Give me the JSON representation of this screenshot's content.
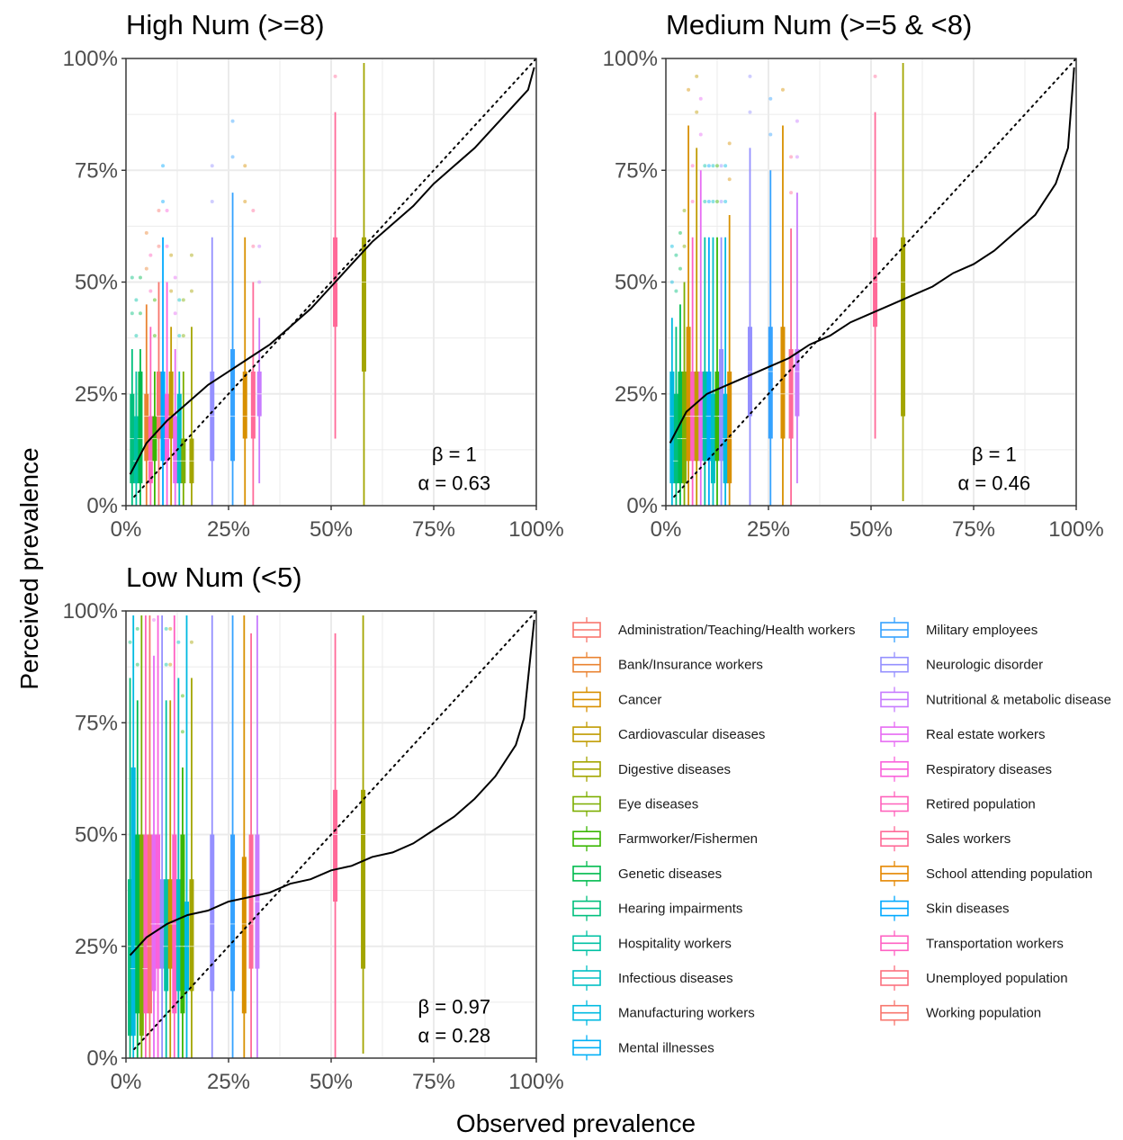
{
  "chart_data": {
    "type": "boxplot",
    "x_axis_title": "Observed prevalence",
    "y_axis_title": "Perceived prevalence",
    "tick_labels": [
      "0%",
      "25%",
      "50%",
      "75%",
      "100%"
    ],
    "xlim": [
      0,
      100
    ],
    "ylim": [
      0,
      100
    ],
    "grid": true,
    "legend_placement": "bottom-right",
    "reference_line": "identity (dotted)",
    "legend": [
      {
        "name": "Administration/Teaching/Health workers",
        "color": "#F8766D"
      },
      {
        "name": "Bank/Insurance workers",
        "color": "#EA8331"
      },
      {
        "name": "Cancer",
        "color": "#D89000"
      },
      {
        "name": "Cardiovascular diseases",
        "color": "#C09B00"
      },
      {
        "name": "Digestive diseases",
        "color": "#A3A500"
      },
      {
        "name": "Eye diseases",
        "color": "#7CAE00"
      },
      {
        "name": "Farmworker/Fishermen",
        "color": "#39B600"
      },
      {
        "name": "Genetic diseases",
        "color": "#00BB4E"
      },
      {
        "name": "Hearing impairments",
        "color": "#00BF7D"
      },
      {
        "name": "Hospitality workers",
        "color": "#00C1A3"
      },
      {
        "name": "Infectious diseases",
        "color": "#00BFC4"
      },
      {
        "name": "Manufacturing workers",
        "color": "#00BAE0"
      },
      {
        "name": "Mental illnesses",
        "color": "#00B0F6"
      },
      {
        "name": "Military employees",
        "color": "#35A2FF"
      },
      {
        "name": "Neurologic disorder",
        "color": "#9590FF"
      },
      {
        "name": "Nutritional & metabolic disease",
        "color": "#C77CFF"
      },
      {
        "name": "Real estate workers",
        "color": "#E76BF3"
      },
      {
        "name": "Respiratory diseases",
        "color": "#FA62DB"
      },
      {
        "name": "Retired population",
        "color": "#FF62BC"
      },
      {
        "name": "Sales workers",
        "color": "#FF6A98"
      },
      {
        "name": "School attending population",
        "color": "#E58700"
      },
      {
        "name": "Skin diseases",
        "color": "#00A9FF"
      },
      {
        "name": "Transportation workers",
        "color": "#FF61C3"
      },
      {
        "name": "Unemployed population",
        "color": "#FC717F"
      },
      {
        "name": "Working population",
        "color": "#F8766D"
      }
    ],
    "panels": [
      {
        "title": "High Num (>=8)",
        "beta_label": "β = 1",
        "alpha_label": "α = 0.63",
        "beta": 1,
        "alpha": 0.63,
        "curve": [
          [
            1,
            7
          ],
          [
            5,
            14
          ],
          [
            10,
            19
          ],
          [
            15,
            23
          ],
          [
            20,
            27
          ],
          [
            25,
            30
          ],
          [
            30,
            33
          ],
          [
            35,
            36
          ],
          [
            40,
            40
          ],
          [
            45,
            44
          ],
          [
            50,
            49
          ],
          [
            55,
            54
          ],
          [
            60,
            59
          ],
          [
            65,
            63
          ],
          [
            70,
            67
          ],
          [
            75,
            72
          ],
          [
            80,
            76
          ],
          [
            85,
            80
          ],
          [
            90,
            85
          ],
          [
            95,
            90
          ],
          [
            98,
            93
          ],
          [
            99.5,
            98
          ]
        ],
        "boxes": [
          {
            "x": 1.5,
            "q1": 5,
            "median": 15,
            "q3": 25,
            "low": 0,
            "high": 35,
            "color": "#00BF7D"
          },
          {
            "x": 2.5,
            "q1": 5,
            "median": 10,
            "q3": 20,
            "low": 0,
            "high": 30,
            "color": "#00C1A3"
          },
          {
            "x": 3.5,
            "q1": 5,
            "median": 15,
            "q3": 30,
            "low": 0,
            "high": 35,
            "color": "#00BB4E"
          },
          {
            "x": 5,
            "q1": 10,
            "median": 20,
            "q3": 25,
            "low": 0,
            "high": 45,
            "color": "#EA8331"
          },
          {
            "x": 6,
            "q1": 5,
            "median": 10,
            "q3": 20,
            "low": 0,
            "high": 40,
            "color": "#FF62BC"
          },
          {
            "x": 7,
            "q1": 10,
            "median": 15,
            "q3": 20,
            "low": 0,
            "high": 30,
            "color": "#39B600"
          },
          {
            "x": 8,
            "q1": 15,
            "median": 20,
            "q3": 30,
            "low": 0,
            "high": 50,
            "color": "#F8766D"
          },
          {
            "x": 9,
            "q1": 10,
            "median": 20,
            "q3": 30,
            "low": 0,
            "high": 60,
            "color": "#00A9FF"
          },
          {
            "x": 10,
            "q1": 10,
            "median": 15,
            "q3": 25,
            "low": 0,
            "high": 50,
            "color": "#FA62DB"
          },
          {
            "x": 11,
            "q1": 15,
            "median": 20,
            "q3": 30,
            "low": 0,
            "high": 40,
            "color": "#C09B00"
          },
          {
            "x": 12,
            "q1": 5,
            "median": 10,
            "q3": 20,
            "low": 0,
            "high": 35,
            "color": "#E76BF3"
          },
          {
            "x": 13,
            "q1": 5,
            "median": 10,
            "q3": 25,
            "low": 0,
            "high": 30,
            "color": "#00BFC4"
          },
          {
            "x": 14,
            "q1": 5,
            "median": 10,
            "q3": 15,
            "low": 0,
            "high": 30,
            "color": "#7CAE00"
          },
          {
            "x": 16,
            "q1": 5,
            "median": 10,
            "q3": 15,
            "low": 0,
            "high": 40,
            "color": "#A3A500"
          },
          {
            "x": 21,
            "q1": 10,
            "median": 20,
            "q3": 30,
            "low": 0,
            "high": 60,
            "color": "#9590FF"
          },
          {
            "x": 26,
            "q1": 10,
            "median": 20,
            "q3": 35,
            "low": 0,
            "high": 70,
            "color": "#35A2FF"
          },
          {
            "x": 29,
            "q1": 15,
            "median": 20,
            "q3": 30,
            "low": 0,
            "high": 60,
            "color": "#D89000"
          },
          {
            "x": 31,
            "q1": 15,
            "median": 20,
            "q3": 30,
            "low": 0,
            "high": 50,
            "color": "#FF6A98"
          },
          {
            "x": 32.5,
            "q1": 20,
            "median": 25,
            "q3": 30,
            "low": 5,
            "high": 42,
            "color": "#C77CFF"
          },
          {
            "x": 51,
            "q1": 40,
            "median": 50,
            "q3": 60,
            "low": 15,
            "high": 88,
            "color": "#FF6A98"
          },
          {
            "x": 58,
            "q1": 30,
            "median": 50,
            "q3": 60,
            "low": 0,
            "high": 99,
            "color": "#A3A500"
          }
        ]
      },
      {
        "title": "Medium Num (>=5 & <8)",
        "beta_label": "β = 1",
        "alpha_label": "α = 0.46",
        "beta": 1,
        "alpha": 0.46,
        "curve": [
          [
            1,
            14
          ],
          [
            5,
            21
          ],
          [
            10,
            25
          ],
          [
            15,
            27
          ],
          [
            20,
            29
          ],
          [
            25,
            31
          ],
          [
            30,
            33
          ],
          [
            35,
            36
          ],
          [
            40,
            38
          ],
          [
            45,
            41
          ],
          [
            50,
            43
          ],
          [
            55,
            45
          ],
          [
            60,
            47
          ],
          [
            65,
            49
          ],
          [
            70,
            52
          ],
          [
            75,
            54
          ],
          [
            80,
            57
          ],
          [
            85,
            61
          ],
          [
            90,
            65
          ],
          [
            95,
            72
          ],
          [
            98,
            80
          ],
          [
            99.5,
            98
          ]
        ],
        "boxes": [
          {
            "x": 1.5,
            "q1": 5,
            "median": 20,
            "q3": 30,
            "low": 0,
            "high": 42,
            "color": "#00BAE0"
          },
          {
            "x": 2.5,
            "q1": 5,
            "median": 10,
            "q3": 25,
            "low": 0,
            "high": 40,
            "color": "#00BF7D"
          },
          {
            "x": 3.5,
            "q1": 5,
            "median": 15,
            "q3": 30,
            "low": 0,
            "high": 45,
            "color": "#00BB4E"
          },
          {
            "x": 4.5,
            "q1": 5,
            "median": 15,
            "q3": 30,
            "low": 0,
            "high": 50,
            "color": "#7CAE00"
          },
          {
            "x": 5.5,
            "q1": 10,
            "median": 20,
            "q3": 40,
            "low": 0,
            "high": 85,
            "color": "#D89000"
          },
          {
            "x": 6.5,
            "q1": 10,
            "median": 20,
            "q3": 30,
            "low": 0,
            "high": 60,
            "color": "#FF61C3"
          },
          {
            "x": 7.5,
            "q1": 10,
            "median": 20,
            "q3": 30,
            "low": 0,
            "high": 80,
            "color": "#C09B00"
          },
          {
            "x": 8.5,
            "q1": 10,
            "median": 20,
            "q3": 30,
            "low": 0,
            "high": 75,
            "color": "#E76BF3"
          },
          {
            "x": 9.5,
            "q1": 10,
            "median": 15,
            "q3": 30,
            "low": 0,
            "high": 60,
            "color": "#00C1A3"
          },
          {
            "x": 10.5,
            "q1": 10,
            "median": 20,
            "q3": 30,
            "low": 0,
            "high": 60,
            "color": "#00A9FF"
          },
          {
            "x": 11.5,
            "q1": 5,
            "median": 15,
            "q3": 25,
            "low": 0,
            "high": 60,
            "color": "#00BFC4"
          },
          {
            "x": 12.5,
            "q1": 10,
            "median": 20,
            "q3": 30,
            "low": 0,
            "high": 60,
            "color": "#39B600"
          },
          {
            "x": 13.5,
            "q1": 10,
            "median": 20,
            "q3": 35,
            "low": 0,
            "high": 60,
            "color": "#9590FF"
          },
          {
            "x": 14.5,
            "q1": 5,
            "median": 15,
            "q3": 25,
            "low": 0,
            "high": 60,
            "color": "#00BAE0"
          },
          {
            "x": 15.5,
            "q1": 5,
            "median": 15,
            "q3": 30,
            "low": 0,
            "high": 65,
            "color": "#D89000"
          },
          {
            "x": 20.5,
            "q1": 20,
            "median": 30,
            "q3": 40,
            "low": 0,
            "high": 80,
            "color": "#9590FF"
          },
          {
            "x": 25.5,
            "q1": 15,
            "median": 30,
            "q3": 40,
            "low": 0,
            "high": 75,
            "color": "#35A2FF"
          },
          {
            "x": 28.5,
            "q1": 15,
            "median": 25,
            "q3": 40,
            "low": 0,
            "high": 85,
            "color": "#D89000"
          },
          {
            "x": 30.5,
            "q1": 15,
            "median": 25,
            "q3": 35,
            "low": 0,
            "high": 62,
            "color": "#FF6A98"
          },
          {
            "x": 32,
            "q1": 20,
            "median": 30,
            "q3": 35,
            "low": 5,
            "high": 70,
            "color": "#C77CFF"
          },
          {
            "x": 51,
            "q1": 40,
            "median": 50,
            "q3": 60,
            "low": 15,
            "high": 88,
            "color": "#FF6A98"
          },
          {
            "x": 57.8,
            "q1": 20,
            "median": 50,
            "q3": 60,
            "low": 1,
            "high": 99,
            "color": "#A3A500"
          }
        ]
      },
      {
        "title": "Low Num (<5)",
        "beta_label": "β = 0.97",
        "alpha_label": "α = 0.28",
        "beta": 0.97,
        "alpha": 0.28,
        "curve": [
          [
            1,
            23
          ],
          [
            5,
            27
          ],
          [
            10,
            30
          ],
          [
            15,
            32
          ],
          [
            20,
            33
          ],
          [
            25,
            35
          ],
          [
            30,
            36
          ],
          [
            35,
            37
          ],
          [
            40,
            39
          ],
          [
            45,
            40
          ],
          [
            50,
            42
          ],
          [
            55,
            43
          ],
          [
            60,
            45
          ],
          [
            65,
            46
          ],
          [
            70,
            48
          ],
          [
            75,
            51
          ],
          [
            80,
            54
          ],
          [
            85,
            58
          ],
          [
            90,
            63
          ],
          [
            95,
            70
          ],
          [
            97,
            76
          ],
          [
            99.5,
            98
          ]
        ],
        "boxes": [
          {
            "x": 1,
            "q1": 5,
            "median": 25,
            "q3": 40,
            "low": 0,
            "high": 85,
            "color": "#00BF7D"
          },
          {
            "x": 1.8,
            "q1": 5,
            "median": 20,
            "q3": 65,
            "low": 0,
            "high": 99,
            "color": "#00BAE0"
          },
          {
            "x": 2.8,
            "q1": 10,
            "median": 25,
            "q3": 50,
            "low": 0,
            "high": 80,
            "color": "#00BB4E"
          },
          {
            "x": 3.8,
            "q1": 5,
            "median": 25,
            "q3": 50,
            "low": 0,
            "high": 99,
            "color": "#7CAE00"
          },
          {
            "x": 4.8,
            "q1": 10,
            "median": 20,
            "q3": 50,
            "low": 0,
            "high": 99,
            "color": "#FF62BC"
          },
          {
            "x": 5.8,
            "q1": 10,
            "median": 25,
            "q3": 50,
            "low": 0,
            "high": 99,
            "color": "#F8766D"
          },
          {
            "x": 6.8,
            "q1": 15,
            "median": 30,
            "q3": 50,
            "low": 0,
            "high": 90,
            "color": "#E76BF3"
          },
          {
            "x": 7.8,
            "q1": 20,
            "median": 30,
            "q3": 50,
            "low": 0,
            "high": 99,
            "color": "#FA62DB"
          },
          {
            "x": 8.8,
            "q1": 20,
            "median": 30,
            "q3": 40,
            "low": 0,
            "high": 99,
            "color": "#9590FF"
          },
          {
            "x": 9.8,
            "q1": 15,
            "median": 25,
            "q3": 40,
            "low": 0,
            "high": 80,
            "color": "#00C1A3"
          },
          {
            "x": 10.8,
            "q1": 20,
            "median": 30,
            "q3": 40,
            "low": 0,
            "high": 80,
            "color": "#C09B00"
          },
          {
            "x": 11.8,
            "q1": 10,
            "median": 30,
            "q3": 50,
            "low": 0,
            "high": 99,
            "color": "#FF61C3"
          },
          {
            "x": 12.8,
            "q1": 15,
            "median": 25,
            "q3": 40,
            "low": 0,
            "high": 85,
            "color": "#00BFC4"
          },
          {
            "x": 13.8,
            "q1": 10,
            "median": 25,
            "q3": 50,
            "low": 0,
            "high": 65,
            "color": "#39B600"
          },
          {
            "x": 14.8,
            "q1": 15,
            "median": 25,
            "q3": 35,
            "low": 0,
            "high": 99,
            "color": "#00BAE0"
          },
          {
            "x": 16,
            "q1": 15,
            "median": 25,
            "q3": 40,
            "low": 0,
            "high": 85,
            "color": "#A3A500"
          },
          {
            "x": 21,
            "q1": 15,
            "median": 30,
            "q3": 50,
            "low": 0,
            "high": 99,
            "color": "#9590FF"
          },
          {
            "x": 26,
            "q1": 15,
            "median": 30,
            "q3": 50,
            "low": 0,
            "high": 99,
            "color": "#35A2FF"
          },
          {
            "x": 28.8,
            "q1": 10,
            "median": 30,
            "q3": 45,
            "low": 0,
            "high": 99,
            "color": "#D89000"
          },
          {
            "x": 30.5,
            "q1": 20,
            "median": 30,
            "q3": 50,
            "low": 0,
            "high": 95,
            "color": "#FF6A98"
          },
          {
            "x": 32,
            "q1": 20,
            "median": 35,
            "q3": 50,
            "low": 0,
            "high": 99,
            "color": "#C77CFF"
          },
          {
            "x": 51,
            "q1": 35,
            "median": 50,
            "q3": 60,
            "low": 0,
            "high": 95,
            "color": "#FF6A98"
          },
          {
            "x": 57.8,
            "q1": 20,
            "median": 50,
            "q3": 60,
            "low": 1,
            "high": 99,
            "color": "#A3A500"
          }
        ]
      }
    ]
  }
}
